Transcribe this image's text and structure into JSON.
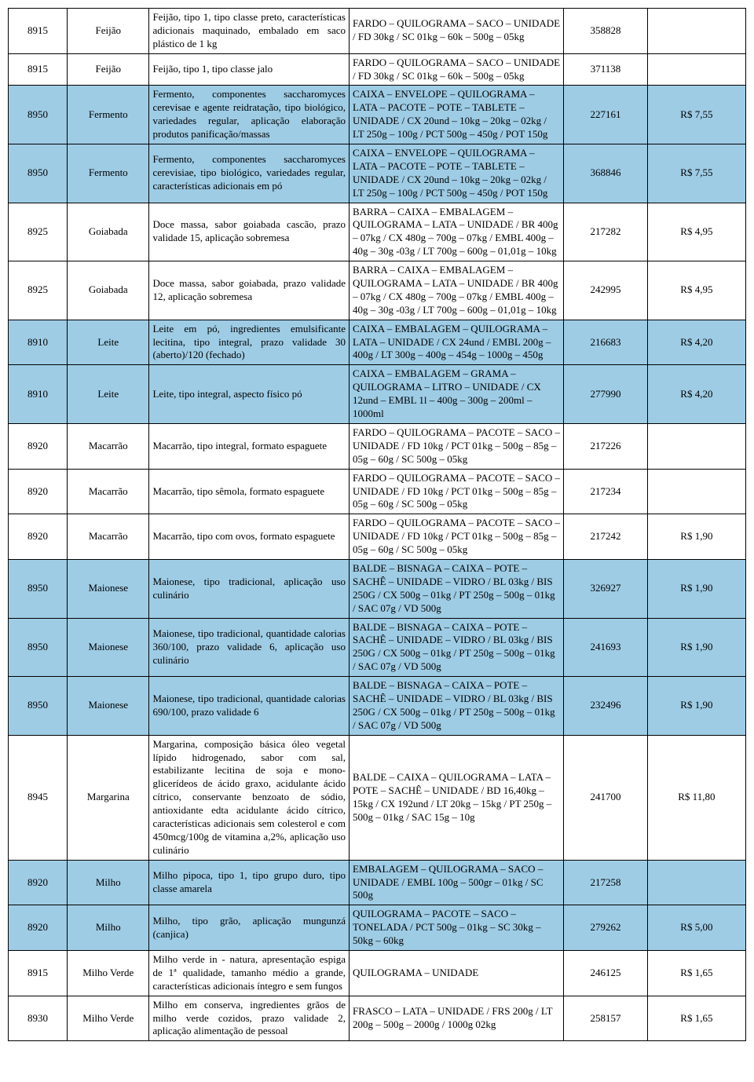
{
  "table": {
    "highlight_color": "#9ecce5",
    "background_color": "#ffffff",
    "border_color": "#000000",
    "rows": [
      {
        "highlight": false,
        "code": "8915",
        "name": "Feijão",
        "desc": "Feijão, tipo 1, tipo classe preto, características adicionais maquinado, embalado em saco plástico de 1 kg",
        "pack": "FARDO – QUILOGRAMA – SACO – UNIDADE / FD 30kg / SC 01kg – 60k – 500g – 05kg",
        "id": "358828",
        "price": ""
      },
      {
        "highlight": false,
        "code": "8915",
        "name": "Feijão",
        "desc": "Feijão, tipo 1, tipo classe jalo",
        "pack": "FARDO – QUILOGRAMA – SACO – UNIDADE / FD 30kg / SC 01kg – 60k – 500g – 05kg",
        "id": "371138",
        "price": ""
      },
      {
        "highlight": true,
        "code": "8950",
        "name": "Fermento",
        "desc": "Fermento, componentes saccharomyces cerevisae e agente reidratação, tipo biológico, variedades regular, aplicação elaboração produtos panificação/massas",
        "pack": "CAIXA – ENVELOPE – QUILOGRAMA – LATA – PACOTE – POTE – TABLETE – UNIDADE / CX 20und – 10kg – 20kg – 02kg / LT 250g – 100g / PCT 500g – 450g / POT 150g",
        "id": "227161",
        "price": "R$ 7,55"
      },
      {
        "highlight": true,
        "code": "8950",
        "name": "Fermento",
        "desc": "Fermento, componentes saccharomyces cerevisiae, tipo biológico, variedades regular, características adicionais em pó",
        "pack": "CAIXA – ENVELOPE – QUILOGRAMA – LATA – PACOTE – POTE – TABLETE – UNIDADE / CX 20und – 10kg – 20kg – 02kg / LT 250g – 100g / PCT 500g – 450g / POT 150g",
        "id": "368846",
        "price": "R$ 7,55"
      },
      {
        "highlight": false,
        "code": "8925",
        "name": "Goiabada",
        "desc": "Doce massa, sabor goiabada cascão, prazo validade 15, aplicação sobremesa",
        "pack": "BARRA – CAIXA – EMBALAGEM – QUILOGRAMA – LATA – UNIDADE / BR 400g – 07kg / CX 480g – 700g – 07kg / EMBL 400g – 40g – 30g -03g / LT 700g – 600g – 01,01g – 10kg",
        "id": "217282",
        "price": "R$ 4,95"
      },
      {
        "highlight": false,
        "code": "8925",
        "name": "Goiabada",
        "desc": "Doce massa, sabor goiabada, prazo validade 12, aplicação sobremesa",
        "pack": "BARRA – CAIXA – EMBALAGEM – QUILOGRAMA – LATA – UNIDADE / BR 400g – 07kg / CX 480g – 700g – 07kg / EMBL 400g – 40g – 30g -03g / LT 700g – 600g – 01,01g – 10kg",
        "id": "242995",
        "price": "R$ 4,95"
      },
      {
        "highlight": true,
        "code": "8910",
        "name": "Leite",
        "desc": "Leite em pó, ingredientes emulsificante lecitina, tipo integral, prazo validade 30 (aberto)/120 (fechado)",
        "pack": "CAIXA – EMBALAGEM – QUILOGRAMA – LATA – UNIDADE / CX 24und / EMBL 200g – 400g / LT 300g – 400g – 454g – 1000g – 450g",
        "id": "216683",
        "price": "R$ 4,20"
      },
      {
        "highlight": true,
        "code": "8910",
        "name": "Leite",
        "desc": "Leite, tipo integral, aspecto físico pó",
        "pack": "CAIXA – EMBALAGEM – GRAMA – QUILOGRAMA – LITRO – UNIDADE / CX 12und – EMBL 1l – 400g – 300g – 200ml – 1000ml",
        "id": "277990",
        "price": "R$ 4,20"
      },
      {
        "highlight": false,
        "code": "8920",
        "name": "Macarrão",
        "desc": "Macarrão, tipo integral, formato espaguete",
        "pack": "FARDO – QUILOGRAMA – PACOTE – SACO – UNIDADE  / FD 10kg / PCT 01kg – 500g – 85g – 05g – 60g / SC 500g – 05kg",
        "id": "217226",
        "price": ""
      },
      {
        "highlight": false,
        "code": "8920",
        "name": "Macarrão",
        "desc": "Macarrão, tipo sêmola, formato espaguete",
        "pack": "FARDO – QUILOGRAMA – PACOTE – SACO – UNIDADE  / FD 10kg / PCT 01kg – 500g – 85g – 05g – 60g / SC 500g – 05kg",
        "id": "217234",
        "price": ""
      },
      {
        "highlight": false,
        "code": "8920",
        "name": "Macarrão",
        "desc": "Macarrão, tipo com ovos, formato espaguete",
        "pack": "FARDO – QUILOGRAMA – PACOTE – SACO – UNIDADE  / FD 10kg / PCT 01kg – 500g – 85g – 05g – 60g / SC 500g – 05kg",
        "id": "217242",
        "price": "R$ 1,90"
      },
      {
        "highlight": true,
        "code": "8950",
        "name": "Maionese",
        "desc": "Maionese, tipo tradicional, aplicação uso culinário",
        "pack": "BALDE – BISNAGA – CAIXA – POTE – SACHÊ – UNIDADE – VIDRO / BL 03kg / BIS 250G / CX 500g – 01kg / PT 250g – 500g – 01kg / SAC 07g / VD 500g",
        "id": "326927",
        "price": "R$ 1,90"
      },
      {
        "highlight": true,
        "code": "8950",
        "name": "Maionese",
        "desc": "Maionese, tipo tradicional, quantidade calorias 360/100, prazo validade 6, aplicação uso culinário",
        "pack": "BALDE – BISNAGA – CAIXA – POTE – SACHÊ – UNIDADE – VIDRO / BL 03kg / BIS 250G / CX 500g – 01kg / PT 250g – 500g – 01kg / SAC 07g / VD 500g",
        "id": "241693",
        "price": "R$ 1,90"
      },
      {
        "highlight": true,
        "code": "8950",
        "name": "Maionese",
        "desc": "Maionese, tipo tradicional, quantidade calorias 690/100, prazo validade 6",
        "pack": "BALDE – BISNAGA – CAIXA – POTE – SACHÊ – UNIDADE – VIDRO / BL 03kg / BIS 250G / CX 500g – 01kg / PT 250g – 500g – 01kg / SAC 07g / VD 500g",
        "id": "232496",
        "price": "R$ 1,90"
      },
      {
        "highlight": false,
        "code": "8945",
        "name": "Margarina",
        "desc": "Margarina, composição básica óleo vegetal lípido hidrogenado, sabor com sal, estabilizante lecitina de soja e mono-glicerídeos de ácido graxo, acidulante ácido cítrico, conservante benzoato de sódio, antioxidante edta acidulante ácido cítrico, características adicionais sem colesterol e com 450mcg/100g de vitamina a,2%, aplicação uso culinário",
        "pack": "BALDE – CAIXA – QUILOGRAMA – LATA – POTE – SACHÊ – UNIDADE / BD 16,40kg – 15kg / CX 192und / LT 20kg – 15kg / PT 250g – 500g – 01kg / SAC 15g – 10g",
        "id": "241700",
        "price": "R$ 11,80"
      },
      {
        "highlight": true,
        "code": "8920",
        "name": "Milho",
        "desc": "Milho pipoca, tipo 1, tipo grupo duro, tipo classe amarela",
        "pack": "EMBALAGEM – QUILOGRAMA – SACO – UNIDADE / EMBL 100g – 500gr – 01kg / SC 500g",
        "id": "217258",
        "price": ""
      },
      {
        "highlight": true,
        "code": "8920",
        "name": "Milho",
        "desc": "Milho, tipo grão, aplicação mungunzá (canjica)",
        "pack": "QUILOGRAMA – PACOTE – SACO – TONELADA / PCT 500g – 01kg – SC 30kg – 50kg – 60kg",
        "id": "279262",
        "price": "R$ 5,00"
      },
      {
        "highlight": false,
        "code": "8915",
        "name": "Milho Verde",
        "desc": "Milho verde in - natura, apresentação espiga de 1ª qualidade, tamanho médio a grande, características adicionais íntegro e sem fungos",
        "pack": "QUILOGRAMA – UNIDADE",
        "id": "246125",
        "price": "R$ 1,65"
      },
      {
        "highlight": false,
        "code": "8930",
        "name": "Milho Verde",
        "desc": "Milho em conserva, ingredientes grãos de milho verde cozidos, prazo validade 2, aplicação alimentação de pessoal",
        "pack": "FRASCO – LATA – UNIDADE / FRS 200g / LT 200g – 500g – 2000g / 1000g 02kg",
        "id": "258157",
        "price": "R$ 1,65"
      }
    ]
  }
}
